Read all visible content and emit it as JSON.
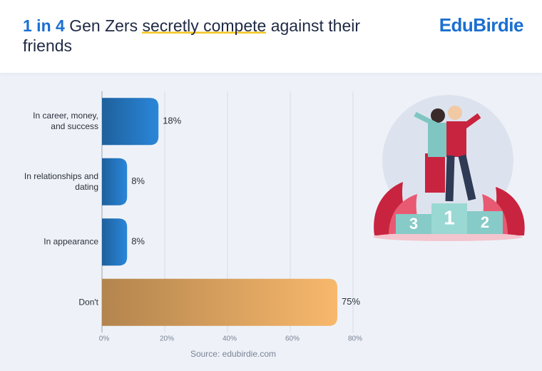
{
  "chart_data": {
    "type": "hbar",
    "title_parts": [
      "1 in 4",
      "Gen Zers",
      "secretly compete",
      "against their friends"
    ],
    "brand": "EduBirdie",
    "source": "Source: edubirdie.com",
    "categories": [
      "In career, money, and success",
      "In relationships and dating",
      "In appearance",
      "Don't"
    ],
    "values": [
      18,
      8,
      8,
      75
    ],
    "value_labels": [
      "18%",
      "8%",
      "8%",
      "75%"
    ],
    "colors": [
      "#2a86d9",
      "#2a86d9",
      "#2a86d9",
      "#f8b86c"
    ],
    "xlim": [
      0,
      80
    ],
    "xticks": [
      {
        "value": 0,
        "label": "0%"
      },
      {
        "value": 20,
        "label": "20%"
      },
      {
        "value": 40,
        "label": "40%"
      },
      {
        "value": 60,
        "label": "60%"
      },
      {
        "value": 80,
        "label": "80%"
      }
    ],
    "grid": true
  },
  "illustration": {
    "podium_numbers": [
      "3",
      "1",
      "2"
    ]
  }
}
